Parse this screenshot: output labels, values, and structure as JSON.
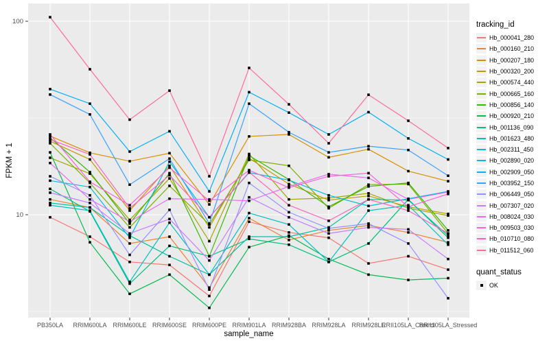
{
  "chart_data": {
    "type": "line",
    "title": "",
    "xlabel": "sample_name",
    "ylabel": "FPKM + 1",
    "y_scale": "log10",
    "y_ticks": [
      100,
      10
    ],
    "y_minor_ticks": [
      31.623,
      3.1623
    ],
    "ylim": [
      2.9,
      115
    ],
    "grid": true,
    "panel_bg": "#EBEBEB",
    "grid_color": "#FFFFFF",
    "tick_label_color": "#4D4D4D",
    "point_color": "#000000",
    "point_shape": "square",
    "legend_position": "right",
    "legend_key_bg": "#F2F2F2",
    "categories": [
      "PB350LA",
      "RRIM600LA",
      "RRIM600LE",
      "RRIM600SE",
      "RRIM600PE",
      "RRIM901LA",
      "RRIM928BA",
      "RRIM928LA",
      "RRIM928LE",
      "RRII105LA_Control",
      "RRII105LA_Stressed"
    ],
    "legend": {
      "color_title": "tracking_id",
      "shape_title": "quant_status",
      "shape_items": [
        {
          "label": "OK",
          "shape": "square",
          "color": "#000000"
        }
      ]
    },
    "series": [
      {
        "name": "Hb_000041_280",
        "color": "#F8766D",
        "values": [
          9.7,
          7.7,
          5.7,
          5.5,
          3.8,
          9.2,
          8.1,
          7.6,
          5.6,
          6.1,
          5.2
        ]
      },
      {
        "name": "Hb_000160_210",
        "color": "#EA8331",
        "values": [
          12.0,
          10.9,
          7.1,
          7.7,
          4.2,
          9.6,
          7.4,
          8.3,
          8.8,
          8.1,
          7.2
        ]
      },
      {
        "name": "Hb_000207_180",
        "color": "#D89000",
        "values": [
          25.5,
          20.9,
          18.9,
          20.8,
          11.3,
          25.4,
          26.0,
          19.8,
          21.8,
          16.8,
          14.9
        ]
      },
      {
        "name": "Hb_000320_200",
        "color": "#C09B00",
        "values": [
          24.0,
          19.3,
          10.5,
          17.9,
          8.6,
          19.6,
          14.4,
          11.9,
          12.5,
          11.0,
          10.1
        ]
      },
      {
        "name": "Hb_000574_440",
        "color": "#A3A500",
        "values": [
          19.7,
          16.3,
          9.4,
          15.4,
          7.3,
          20.6,
          12.0,
          12.2,
          12.9,
          10.8,
          9.9
        ]
      },
      {
        "name": "Hb_000665_160",
        "color": "#7CAE00",
        "values": [
          23.4,
          14.6,
          8.6,
          14.1,
          8.9,
          19.2,
          17.9,
          10.8,
          14.3,
          14.4,
          8.0
        ]
      },
      {
        "name": "Hb_000856_140",
        "color": "#39B600",
        "values": [
          25.0,
          16.6,
          9.0,
          16.4,
          6.1,
          20.2,
          15.2,
          11.0,
          14.0,
          14.6,
          8.3
        ]
      },
      {
        "name": "Hb_000920_210",
        "color": "#00BB4E",
        "values": [
          21.0,
          7.2,
          3.9,
          4.9,
          3.3,
          6.8,
          7.8,
          5.9,
          4.9,
          4.6,
          4.7
        ]
      },
      {
        "name": "Hb_001136_090",
        "color": "#00BF7D",
        "values": [
          13.6,
          10.4,
          4.4,
          6.9,
          6.1,
          7.5,
          7.0,
          5.7,
          7.1,
          12.0,
          7.6
        ]
      },
      {
        "name": "Hb_001623_480",
        "color": "#00C1A3",
        "values": [
          11.5,
          10.9,
          7.8,
          6.1,
          4.9,
          7.7,
          7.7,
          8.6,
          12.0,
          11.9,
          7.8
        ]
      },
      {
        "name": "Hb_002311_450",
        "color": "#00BFC4",
        "values": [
          11.2,
          10.5,
          4.5,
          9.1,
          4.9,
          10.2,
          8.9,
          5.7,
          10.5,
          11.2,
          7.0
        ]
      },
      {
        "name": "Hb_002890_020",
        "color": "#00BBDB",
        "values": [
          15.0,
          13.9,
          7.6,
          18.8,
          9.7,
          16.5,
          15.1,
          12.6,
          11.1,
          12.1,
          13.2
        ]
      },
      {
        "name": "Hb_002909_050",
        "color": "#00B0F6",
        "values": [
          44.6,
          37.5,
          21.2,
          27.0,
          13.2,
          43.0,
          33.7,
          26.0,
          33.9,
          24.8,
          19.3
        ]
      },
      {
        "name": "Hb_003952_150",
        "color": "#35A2FF",
        "values": [
          41.8,
          33.0,
          14.3,
          19.5,
          9.0,
          37.5,
          26.7,
          21.0,
          22.6,
          21.6,
          15.9
        ]
      },
      {
        "name": "Hb_006449_050",
        "color": "#9590FF",
        "values": [
          15.8,
          12.6,
          6.2,
          10.6,
          4.1,
          14.6,
          10.3,
          8.5,
          9.0,
          7.1,
          3.7
        ]
      },
      {
        "name": "Hb_007307_020",
        "color": "#C77CFF",
        "values": [
          13.0,
          11.5,
          8.0,
          9.5,
          5.8,
          12.3,
          9.7,
          8.0,
          8.6,
          8.4,
          5.9
        ]
      },
      {
        "name": "Hb_008024_030",
        "color": "#E76BF3",
        "values": [
          18.5,
          12.0,
          9.2,
          12.1,
          12.0,
          11.8,
          14.0,
          16.2,
          15.5,
          12.0,
          13.1
        ]
      },
      {
        "name": "Hb_009503_030",
        "color": "#FA62DB",
        "values": [
          26.0,
          14.8,
          11.2,
          17.5,
          11.8,
          17.0,
          13.8,
          15.8,
          16.4,
          11.0,
          12.8
        ]
      },
      {
        "name": "Hb_010710_080",
        "color": "#FF62BC",
        "values": [
          24.5,
          20.5,
          10.8,
          16.0,
          9.7,
          16.6,
          11.2,
          9.3,
          12.0,
          10.5,
          8.0
        ]
      },
      {
        "name": "Hb_011512_060",
        "color": "#FF6A98",
        "values": [
          105.0,
          56.5,
          31.0,
          43.8,
          15.8,
          57.4,
          37.2,
          23.4,
          41.7,
          30.6,
          22.1
        ]
      }
    ]
  }
}
